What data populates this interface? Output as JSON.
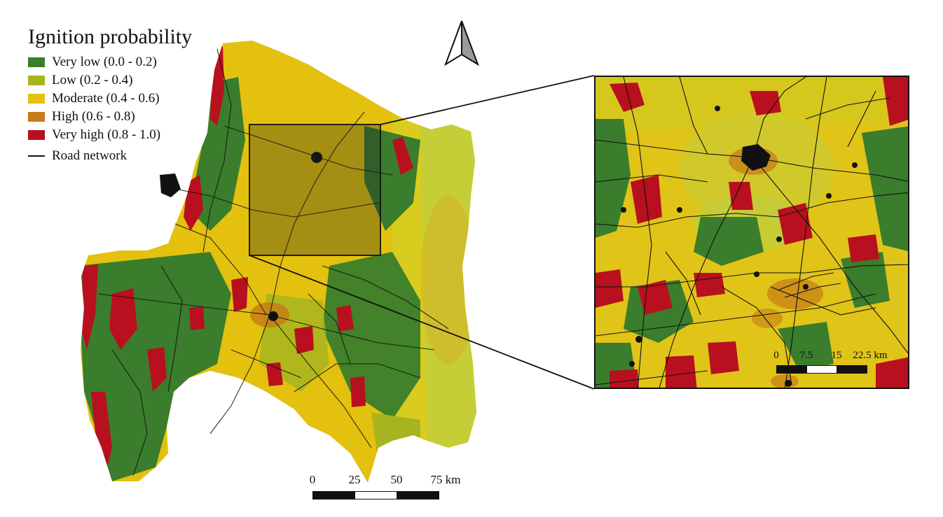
{
  "legend": {
    "title": "Ignition probability",
    "classes": [
      {
        "label": "Very low (0.0 - 0.2)",
        "color": "#3a7d2c"
      },
      {
        "label": "Low (0.2 - 0.4)",
        "color": "#a6b51f"
      },
      {
        "label": "Moderate (0.4 - 0.6)",
        "color": "#e3c10e"
      },
      {
        "label": "High (0.6 - 0.8)",
        "color": "#c87b18"
      },
      {
        "label": "Very high (0.8 - 1.0)",
        "color": "#b8101e"
      }
    ],
    "road_label": "Road network"
  },
  "main_scale": {
    "ticks": [
      "0",
      "25",
      "50",
      "75 km"
    ]
  },
  "inset_scale": {
    "ticks": [
      "0",
      "7.5",
      "15",
      "22.5 km"
    ]
  },
  "north_arrow": "north-arrow-icon"
}
